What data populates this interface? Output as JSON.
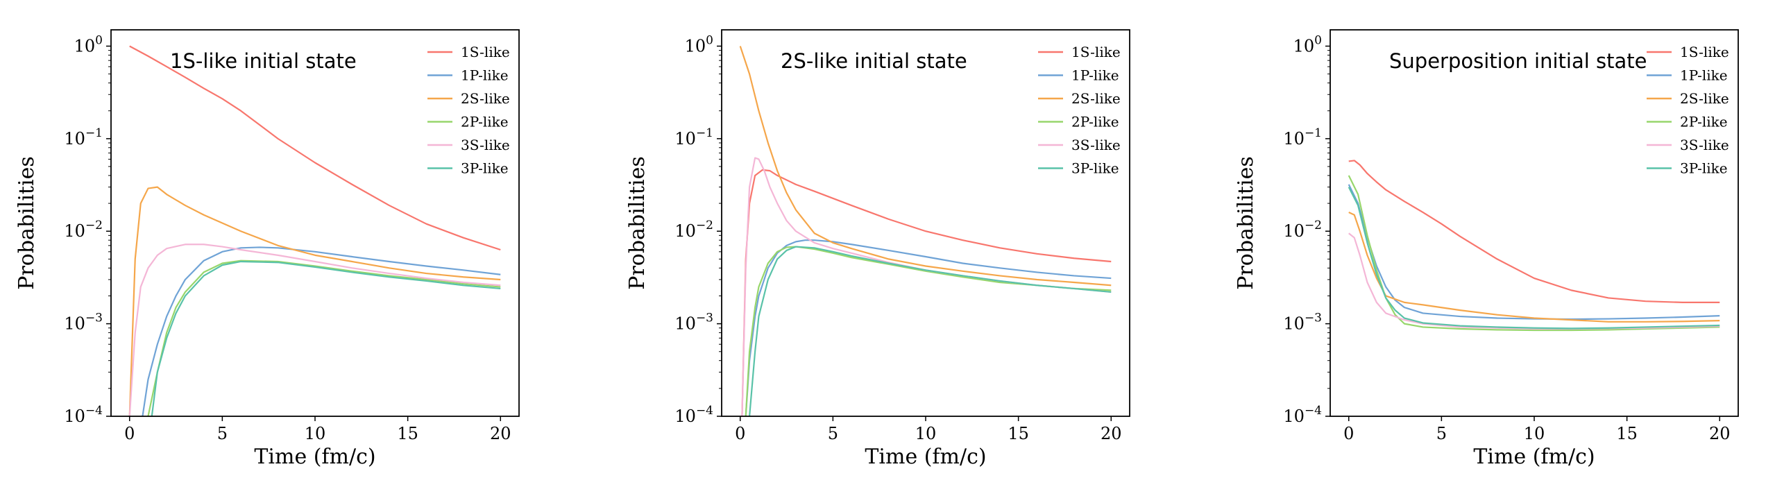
{
  "colors": {
    "1S-like": "#f8766d",
    "1P-like": "#6fa3d6",
    "2S-like": "#f5a64a",
    "2P-like": "#97d66b",
    "3S-like": "#f4b6d6",
    "3P-like": "#59c2a8",
    "axis": "#000000"
  },
  "chart_data": [
    {
      "type": "line",
      "title": "1S-like initial state",
      "xlabel": "Time (fm/c)",
      "ylabel": "Probabilities",
      "yscale": "log",
      "xlim": [
        -1,
        21
      ],
      "ylim": [
        0.0001,
        1.5
      ],
      "xticks": [
        0,
        5,
        10,
        15,
        20
      ],
      "yticks": [
        {
          "value": 0.0001,
          "base": "10",
          "exp": "−4"
        },
        {
          "value": 0.001,
          "base": "10",
          "exp": "−3"
        },
        {
          "value": 0.01,
          "base": "10",
          "exp": "−2"
        },
        {
          "value": 0.1,
          "base": "10",
          "exp": "−1"
        },
        {
          "value": 1,
          "base": "10",
          "exp": "0"
        }
      ],
      "legend_position": "top-right",
      "series": [
        {
          "name": "1S-like",
          "x": [
            0,
            1,
            2,
            3,
            4,
            5,
            6,
            8,
            10,
            12,
            14,
            16,
            18,
            20
          ],
          "values": [
            1.0,
            0.78,
            0.6,
            0.46,
            0.35,
            0.27,
            0.2,
            0.1,
            0.055,
            0.032,
            0.019,
            0.012,
            0.0085,
            0.0063
          ]
        },
        {
          "name": "1P-like",
          "x": [
            0.7,
            1,
            1.5,
            2,
            2.5,
            3,
            4,
            5,
            6,
            7,
            8,
            10,
            12,
            14,
            16,
            18,
            20
          ],
          "values": [
            0.0001,
            0.00025,
            0.0006,
            0.0012,
            0.002,
            0.003,
            0.0048,
            0.006,
            0.0066,
            0.0067,
            0.0066,
            0.006,
            0.0053,
            0.0047,
            0.0042,
            0.0038,
            0.0034
          ]
        },
        {
          "name": "2S-like",
          "x": [
            0,
            0.3,
            0.6,
            1,
            1.5,
            2,
            3,
            4,
            6,
            8,
            10,
            12,
            14,
            16,
            18,
            20
          ],
          "values": [
            0.0001,
            0.005,
            0.02,
            0.029,
            0.03,
            0.025,
            0.019,
            0.015,
            0.01,
            0.007,
            0.0055,
            0.0047,
            0.004,
            0.0035,
            0.0032,
            0.003
          ]
        },
        {
          "name": "2P-like",
          "x": [
            1,
            1.5,
            2,
            2.5,
            3,
            4,
            5,
            6,
            8,
            10,
            12,
            14,
            16,
            18,
            20
          ],
          "values": [
            0.0001,
            0.0003,
            0.0008,
            0.0015,
            0.0022,
            0.0036,
            0.0045,
            0.0048,
            0.0047,
            0.0042,
            0.0037,
            0.0033,
            0.003,
            0.0027,
            0.0025
          ]
        },
        {
          "name": "3S-like",
          "x": [
            0,
            0.3,
            0.6,
            1,
            1.5,
            2,
            3,
            4,
            5,
            6,
            8,
            10,
            12,
            14,
            16,
            18,
            20
          ],
          "values": [
            0.0001,
            0.0008,
            0.0025,
            0.004,
            0.0055,
            0.0065,
            0.0072,
            0.0072,
            0.0068,
            0.0063,
            0.0055,
            0.0047,
            0.004,
            0.0035,
            0.0031,
            0.0028,
            0.0026
          ]
        },
        {
          "name": "3P-like",
          "x": [
            1.2,
            1.5,
            2,
            2.5,
            3,
            4,
            5,
            6,
            8,
            10,
            12,
            14,
            16,
            18,
            20
          ],
          "values": [
            0.0001,
            0.0003,
            0.0007,
            0.0013,
            0.002,
            0.0033,
            0.0043,
            0.0047,
            0.0046,
            0.0041,
            0.0036,
            0.0032,
            0.0029,
            0.0026,
            0.0024
          ]
        }
      ]
    },
    {
      "type": "line",
      "title": "2S-like initial state",
      "xlabel": "Time (fm/c)",
      "ylabel": "Probabilities",
      "yscale": "log",
      "xlim": [
        -1,
        21
      ],
      "ylim": [
        0.0001,
        1.5
      ],
      "xticks": [
        0,
        5,
        10,
        15,
        20
      ],
      "yticks": [
        {
          "value": 0.0001,
          "base": "10",
          "exp": "−4"
        },
        {
          "value": 0.001,
          "base": "10",
          "exp": "−3"
        },
        {
          "value": 0.01,
          "base": "10",
          "exp": "−2"
        },
        {
          "value": 0.1,
          "base": "10",
          "exp": "−1"
        },
        {
          "value": 1,
          "base": "10",
          "exp": "0"
        }
      ],
      "legend_position": "top-right",
      "series": [
        {
          "name": "1S-like",
          "x": [
            0.1,
            0.3,
            0.5,
            0.8,
            1.2,
            1.6,
            2,
            3,
            4,
            6,
            8,
            10,
            12,
            14,
            16,
            18,
            20
          ],
          "values": [
            0.0001,
            0.005,
            0.02,
            0.04,
            0.046,
            0.045,
            0.04,
            0.032,
            0.027,
            0.019,
            0.0135,
            0.01,
            0.008,
            0.0066,
            0.0057,
            0.0051,
            0.0047
          ]
        },
        {
          "name": "1P-like",
          "x": [
            0.3,
            0.5,
            0.8,
            1,
            1.5,
            2,
            2.5,
            3,
            3.5,
            4,
            5,
            6,
            8,
            10,
            12,
            14,
            16,
            18,
            20
          ],
          "values": [
            0.0001,
            0.0004,
            0.0012,
            0.002,
            0.004,
            0.0058,
            0.007,
            0.0077,
            0.008,
            0.008,
            0.0077,
            0.0072,
            0.0062,
            0.0053,
            0.0045,
            0.004,
            0.0036,
            0.0033,
            0.0031
          ]
        },
        {
          "name": "2S-like",
          "x": [
            0,
            0.5,
            1,
            1.5,
            2,
            2.5,
            3,
            4,
            5,
            6,
            8,
            10,
            12,
            14,
            16,
            18,
            20
          ],
          "values": [
            1.0,
            0.5,
            0.2,
            0.09,
            0.045,
            0.026,
            0.017,
            0.0095,
            0.0075,
            0.0065,
            0.005,
            0.0042,
            0.0037,
            0.0033,
            0.003,
            0.0028,
            0.0026
          ]
        },
        {
          "name": "2P-like",
          "x": [
            0.3,
            0.5,
            0.8,
            1,
            1.5,
            2,
            2.5,
            3,
            4,
            5,
            6,
            8,
            10,
            12,
            14,
            16,
            18,
            20
          ],
          "values": [
            0.0001,
            0.0005,
            0.0015,
            0.0025,
            0.0045,
            0.006,
            0.0067,
            0.0068,
            0.0064,
            0.0058,
            0.0052,
            0.0044,
            0.0037,
            0.0032,
            0.0028,
            0.0026,
            0.0024,
            0.0023
          ]
        },
        {
          "name": "3S-like",
          "x": [
            0.1,
            0.3,
            0.5,
            0.8,
            1,
            1.3,
            1.6,
            2,
            2.5,
            3,
            4,
            5,
            6,
            8,
            10,
            12,
            14,
            16,
            18,
            20
          ],
          "values": [
            0.0001,
            0.004,
            0.03,
            0.062,
            0.06,
            0.045,
            0.03,
            0.02,
            0.013,
            0.01,
            0.0075,
            0.0065,
            0.0058,
            0.0046,
            0.0038,
            0.0033,
            0.0029,
            0.0026,
            0.0024,
            0.0022
          ]
        },
        {
          "name": "3P-like",
          "x": [
            0.5,
            0.8,
            1,
            1.5,
            2,
            2.5,
            3,
            4,
            5,
            6,
            8,
            10,
            12,
            14,
            16,
            18,
            20
          ],
          "values": [
            0.0001,
            0.0005,
            0.0012,
            0.003,
            0.005,
            0.0062,
            0.0068,
            0.0066,
            0.006,
            0.0054,
            0.0045,
            0.0038,
            0.0033,
            0.0029,
            0.0026,
            0.0024,
            0.0022
          ]
        }
      ]
    },
    {
      "type": "line",
      "title": "Superposition initial state",
      "xlabel": "Time (fm/c)",
      "ylabel": "Probabilities",
      "yscale": "log",
      "xlim": [
        -1,
        21
      ],
      "ylim": [
        0.0001,
        1.5
      ],
      "xticks": [
        0,
        5,
        10,
        15,
        20
      ],
      "yticks": [
        {
          "value": 0.0001,
          "base": "10",
          "exp": "−4"
        },
        {
          "value": 0.001,
          "base": "10",
          "exp": "−3"
        },
        {
          "value": 0.01,
          "base": "10",
          "exp": "−2"
        },
        {
          "value": 0.1,
          "base": "10",
          "exp": "−1"
        },
        {
          "value": 1,
          "base": "10",
          "exp": "0"
        }
      ],
      "legend_position": "top-right",
      "series": [
        {
          "name": "1S-like",
          "x": [
            0,
            0.3,
            0.6,
            1,
            1.5,
            2,
            3,
            4,
            5,
            6,
            8,
            10,
            12,
            14,
            16,
            18,
            20
          ],
          "values": [
            0.057,
            0.058,
            0.052,
            0.042,
            0.034,
            0.028,
            0.021,
            0.016,
            0.012,
            0.0088,
            0.005,
            0.0031,
            0.0023,
            0.0019,
            0.00175,
            0.0017,
            0.0017
          ]
        },
        {
          "name": "1P-like",
          "x": [
            0,
            0.5,
            1,
            1.5,
            2,
            2.5,
            3,
            4,
            6,
            8,
            10,
            12,
            14,
            16,
            18,
            20
          ],
          "values": [
            0.032,
            0.02,
            0.0085,
            0.0042,
            0.0025,
            0.0018,
            0.0015,
            0.0013,
            0.0012,
            0.00115,
            0.00113,
            0.00112,
            0.00113,
            0.00115,
            0.00118,
            0.00122
          ]
        },
        {
          "name": "2S-like",
          "x": [
            0,
            0.3,
            0.6,
            1,
            1.5,
            2,
            3,
            4,
            6,
            8,
            10,
            12,
            14,
            16,
            18,
            20
          ],
          "values": [
            0.016,
            0.015,
            0.01,
            0.0055,
            0.0031,
            0.002,
            0.0017,
            0.0016,
            0.0014,
            0.00125,
            0.00115,
            0.0011,
            0.00105,
            0.00105,
            0.00106,
            0.00108
          ]
        },
        {
          "name": "2P-like",
          "x": [
            0,
            0.5,
            1,
            1.5,
            2,
            2.5,
            3,
            4,
            6,
            8,
            10,
            12,
            14,
            16,
            18,
            20
          ],
          "values": [
            0.04,
            0.025,
            0.009,
            0.0038,
            0.0019,
            0.00125,
            0.001,
            0.00092,
            0.00088,
            0.00086,
            0.00085,
            0.00085,
            0.00086,
            0.00088,
            0.0009,
            0.00092
          ]
        },
        {
          "name": "3S-like",
          "x": [
            0,
            0.3,
            0.6,
            1,
            1.5,
            2,
            3,
            4,
            6,
            8,
            10,
            12,
            14,
            16,
            18,
            20
          ],
          "values": [
            0.0095,
            0.0085,
            0.0055,
            0.0028,
            0.0017,
            0.0013,
            0.0011,
            0.001,
            0.00092,
            0.0009,
            0.00088,
            0.00088,
            0.00089,
            0.0009,
            0.00092,
            0.00094
          ]
        },
        {
          "name": "3P-like",
          "x": [
            0,
            0.5,
            1,
            1.5,
            2,
            2.5,
            3,
            4,
            6,
            8,
            10,
            12,
            14,
            16,
            18,
            20
          ],
          "values": [
            0.03,
            0.019,
            0.0075,
            0.0034,
            0.0019,
            0.0014,
            0.00115,
            0.00102,
            0.00095,
            0.00092,
            0.0009,
            0.00089,
            0.0009,
            0.00092,
            0.00094,
            0.00096
          ]
        }
      ]
    }
  ]
}
